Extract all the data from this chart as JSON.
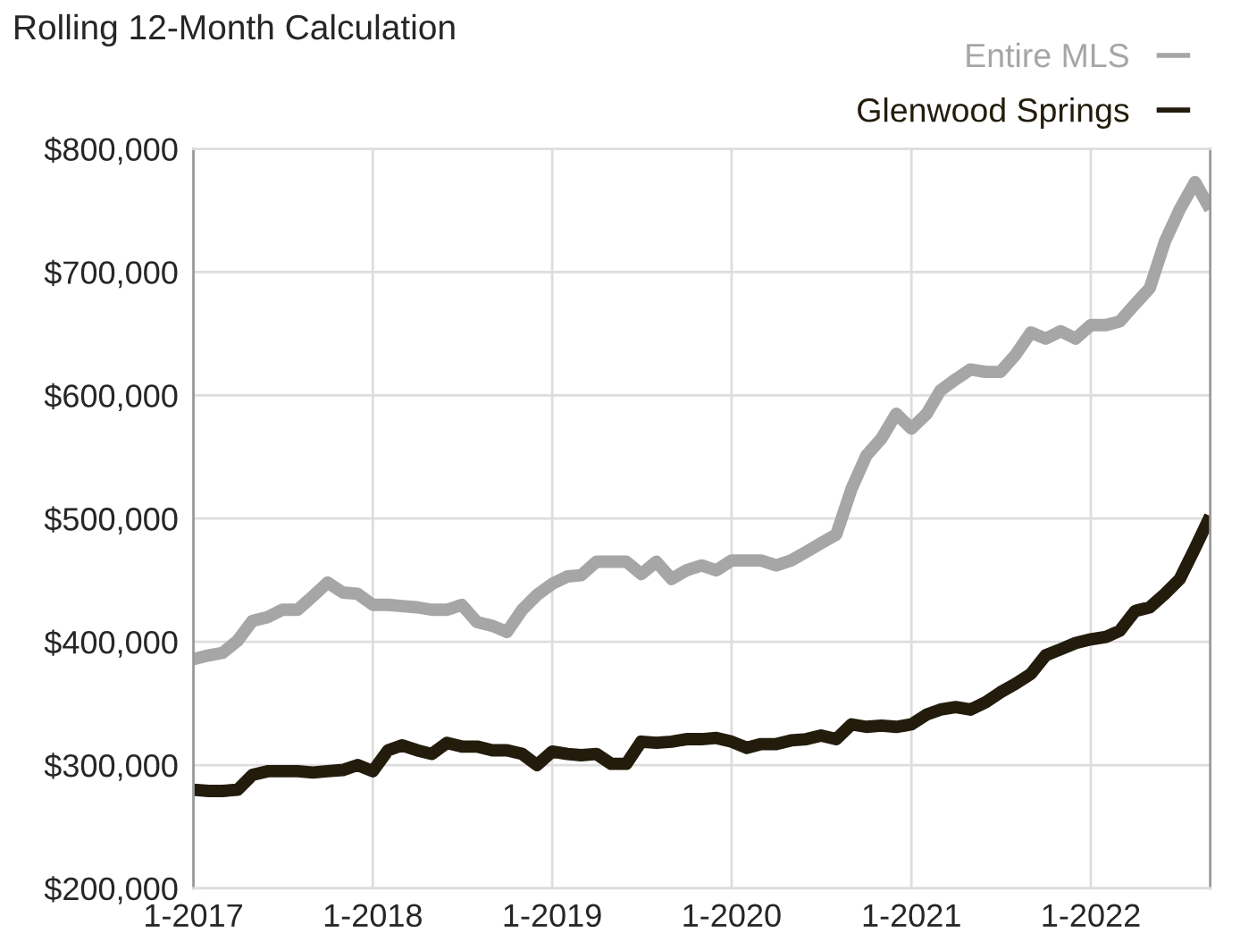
{
  "chart_data": {
    "type": "line",
    "title": "Rolling 12-Month Calculation",
    "x": [
      "2017-01",
      "2017-02",
      "2017-03",
      "2017-04",
      "2017-05",
      "2017-06",
      "2017-07",
      "2017-08",
      "2017-09",
      "2017-10",
      "2017-11",
      "2017-12",
      "2018-01",
      "2018-02",
      "2018-03",
      "2018-04",
      "2018-05",
      "2018-06",
      "2018-07",
      "2018-08",
      "2018-09",
      "2018-10",
      "2018-11",
      "2018-12",
      "2019-01",
      "2019-02",
      "2019-03",
      "2019-04",
      "2019-05",
      "2019-06",
      "2019-07",
      "2019-08",
      "2019-09",
      "2019-10",
      "2019-11",
      "2019-12",
      "2020-01",
      "2020-02",
      "2020-03",
      "2020-04",
      "2020-05",
      "2020-06",
      "2020-07",
      "2020-08",
      "2020-09",
      "2020-10",
      "2020-11",
      "2020-12",
      "2021-01",
      "2021-02",
      "2021-03",
      "2021-04",
      "2021-05",
      "2021-06",
      "2021-07",
      "2021-08",
      "2021-09",
      "2021-10",
      "2021-11",
      "2021-12",
      "2022-01",
      "2022-02",
      "2022-03",
      "2022-04",
      "2022-05",
      "2022-06",
      "2022-07",
      "2022-08",
      "2022-09"
    ],
    "series": [
      {
        "name": "Entire MLS",
        "color": "#a6a6a6",
        "values": [
          386000,
          389000,
          391000,
          401000,
          417000,
          420000,
          426000,
          426000,
          437000,
          448000,
          440000,
          439000,
          430000,
          430000,
          429000,
          428000,
          426000,
          426000,
          430000,
          416000,
          413000,
          408000,
          426000,
          438000,
          447000,
          453000,
          454000,
          465000,
          465000,
          465000,
          455000,
          465000,
          451000,
          458000,
          462000,
          458000,
          466000,
          466000,
          466000,
          462000,
          466000,
          473000,
          480000,
          487000,
          524000,
          551000,
          565000,
          585000,
          573000,
          585000,
          604000,
          613000,
          621000,
          619000,
          619000,
          633000,
          651000,
          646000,
          652000,
          646000,
          657000,
          657000,
          660000,
          674000,
          687000,
          725000,
          751000,
          773000,
          751000
        ]
      },
      {
        "name": "Glenwood Springs",
        "color": "#231c0c",
        "values": [
          280000,
          279000,
          279000,
          280000,
          292000,
          295000,
          295000,
          295000,
          294000,
          295000,
          296000,
          300000,
          295000,
          312000,
          316000,
          312000,
          309000,
          318000,
          315000,
          315000,
          312000,
          312000,
          309000,
          300000,
          311000,
          309000,
          308000,
          309000,
          301000,
          301000,
          319000,
          318000,
          319000,
          321000,
          321000,
          322000,
          319000,
          314000,
          317000,
          317000,
          320000,
          321000,
          324000,
          321000,
          333000,
          331000,
          332000,
          331000,
          333000,
          341000,
          345000,
          347000,
          345000,
          351000,
          359000,
          366000,
          374000,
          389000,
          394000,
          399000,
          402000,
          404000,
          409000,
          425000,
          428000,
          439000,
          451000,
          476000,
          502000
        ]
      }
    ],
    "xlim": [
      "2017-01",
      "2022-09"
    ],
    "xticks": [
      {
        "value": "2017-01",
        "label": "1-2017"
      },
      {
        "value": "2018-01",
        "label": "1-2018"
      },
      {
        "value": "2019-01",
        "label": "1-2019"
      },
      {
        "value": "2020-01",
        "label": "1-2020"
      },
      {
        "value": "2021-01",
        "label": "1-2021"
      },
      {
        "value": "2022-01",
        "label": "1-2022"
      }
    ],
    "ylim": [
      200000,
      800000
    ],
    "yticks": [
      {
        "value": 200000,
        "label": "$200,000"
      },
      {
        "value": 300000,
        "label": "$300,000"
      },
      {
        "value": 400000,
        "label": "$400,000"
      },
      {
        "value": 500000,
        "label": "$500,000"
      },
      {
        "value": 600000,
        "label": "$600,000"
      },
      {
        "value": 700000,
        "label": "$700,000"
      },
      {
        "value": 800000,
        "label": "$800,000"
      }
    ],
    "grid": true,
    "legend": "top right",
    "marker": "none",
    "line_style": "solid"
  }
}
